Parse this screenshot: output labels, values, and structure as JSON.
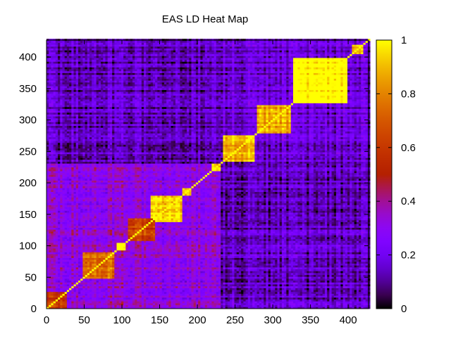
{
  "chart_data": {
    "type": "heatmap",
    "title": "EAS LD Heat Map",
    "xlabel": "",
    "ylabel": "",
    "xlim": [
      0,
      427
    ],
    "ylim": [
      0,
      427
    ],
    "x_ticks": [
      0,
      50,
      100,
      150,
      200,
      250,
      300,
      350,
      400
    ],
    "y_ticks": [
      0,
      50,
      100,
      150,
      200,
      250,
      300,
      350,
      400
    ],
    "colorbar": {
      "min": 0,
      "max": 1,
      "ticks": [
        0,
        0.2,
        0.4,
        0.6,
        0.8,
        1
      ],
      "colormap": "gnuplot (black-purple-red-orange-yellow)"
    },
    "blocks": [
      {
        "from": 0,
        "to": 28,
        "r2": 0.55
      },
      {
        "from": 48,
        "to": 90,
        "r2": 0.72
      },
      {
        "from": 92,
        "to": 105,
        "r2": 0.95
      },
      {
        "from": 108,
        "to": 145,
        "r2": 0.6
      },
      {
        "from": 138,
        "to": 180,
        "r2": 0.93
      },
      {
        "from": 180,
        "to": 192,
        "r2": 0.97
      },
      {
        "from": 218,
        "to": 232,
        "r2": 0.9
      },
      {
        "from": 235,
        "to": 276,
        "r2": 0.85
      },
      {
        "from": 278,
        "to": 325,
        "r2": 0.82
      },
      {
        "from": 326,
        "to": 400,
        "r2": 0.97
      },
      {
        "from": 405,
        "to": 420,
        "r2": 0.85
      }
    ],
    "region_means": [
      {
        "from": 0,
        "to": 230,
        "r2": 0.28
      },
      {
        "from": 232,
        "to": 427,
        "r2": 0.12
      }
    ],
    "background_r2": 0.1
  }
}
